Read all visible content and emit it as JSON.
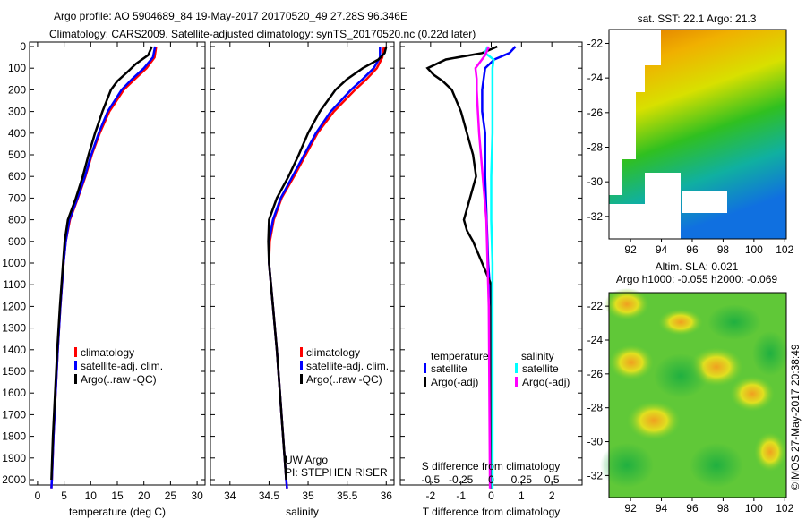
{
  "title_line1": "Argo profile: AO 5904689_84 19-May-2017 20170520_49 27.28S 96.346E",
  "title_line2": "Climatology: CARS2009. Satellite-adjusted climatology: synTS_20170520.nc (0.22d later)",
  "copyright": "©IMOS 27-May-2017 20:38:49",
  "colors": {
    "climatology": "#ff0000",
    "satellite": "#0000ff",
    "argo": "#000000",
    "sal_sat": "#00ffff",
    "sal_argo": "#ff00ff"
  },
  "chart_data": [
    {
      "type": "line",
      "name": "temperature-profile",
      "xlabel": "temperature (deg C)",
      "xlim": [
        -1.5,
        31.5
      ],
      "xticks": [
        0,
        5,
        10,
        15,
        20,
        25,
        30
      ],
      "ylim": [
        0,
        2050
      ],
      "yticks": [
        0,
        100,
        200,
        300,
        400,
        500,
        600,
        700,
        800,
        900,
        1000,
        1100,
        1200,
        1300,
        1400,
        1500,
        1600,
        1700,
        1800,
        1900,
        2000
      ],
      "legend": [
        "climatology",
        "satellite-adj. clim.",
        "Argo(..raw -QC)"
      ],
      "series": [
        {
          "name": "climatology",
          "color": "#ff0000",
          "depth": [
            0,
            50,
            100,
            150,
            200,
            300,
            400,
            500,
            600,
            700,
            800,
            900,
            1000,
            1200,
            1400,
            1600,
            1800,
            2000,
            2040
          ],
          "values": [
            22.3,
            22,
            20.5,
            18.3,
            16.2,
            13.5,
            11.7,
            10.2,
            9,
            7.6,
            6.1,
            5.3,
            4.9,
            4.3,
            3.8,
            3.4,
            3,
            2.7,
            2.6
          ]
        },
        {
          "name": "satellite-adj. clim.",
          "color": "#0000ff",
          "depth": [
            0,
            50,
            100,
            150,
            200,
            300,
            400,
            500,
            600,
            700,
            800,
            900,
            1000,
            1200,
            1400,
            1600,
            1800,
            2000,
            2040
          ],
          "values": [
            22.1,
            21.7,
            20,
            17.8,
            15.8,
            13.2,
            11.5,
            10.1,
            8.9,
            7.5,
            6,
            5.3,
            4.9,
            4.3,
            3.8,
            3.4,
            3,
            2.7,
            2.6
          ]
        },
        {
          "name": "Argo(..raw -QC)",
          "color": "#000000",
          "depth": [
            0,
            40,
            80,
            120,
            160,
            200,
            300,
            400,
            500,
            600,
            700,
            800,
            900,
            1000,
            1200,
            1400,
            1600,
            1800,
            2000
          ],
          "values": [
            21.5,
            20.8,
            18.5,
            16.8,
            15,
            13.8,
            12.2,
            10.8,
            9.6,
            8.5,
            7.2,
            5.7,
            5.1,
            4.8,
            4.2,
            3.7,
            3.3,
            2.9,
            2.6
          ]
        }
      ]
    },
    {
      "type": "line",
      "name": "salinity-profile",
      "xlabel": "salinity",
      "xlim": [
        33.75,
        36.1
      ],
      "xticks": [
        34,
        34.5,
        35,
        35.5,
        36
      ],
      "ylim": [
        0,
        2050
      ],
      "legend": [
        "climatology",
        "satellite-adj. clim.",
        "Argo(..raw -QC)"
      ],
      "annotation": [
        "UW Argo",
        "PI: STEPHEN RISER"
      ],
      "series": [
        {
          "name": "climatology",
          "color": "#ff0000",
          "depth": [
            0,
            50,
            100,
            150,
            200,
            300,
            400,
            500,
            600,
            700,
            800,
            900,
            1000,
            1200,
            1400,
            1600,
            1800,
            2000,
            2040
          ],
          "values": [
            35.97,
            35.95,
            35.88,
            35.75,
            35.6,
            35.33,
            35.12,
            34.97,
            34.82,
            34.66,
            34.56,
            34.51,
            34.5,
            34.55,
            34.6,
            34.64,
            34.68,
            34.72,
            34.73
          ]
        },
        {
          "name": "satellite-adj. clim.",
          "color": "#0000ff",
          "depth": [
            0,
            50,
            100,
            150,
            200,
            300,
            400,
            500,
            600,
            700,
            800,
            900,
            1000,
            1200,
            1400,
            1600,
            1800,
            2000,
            2040
          ],
          "values": [
            35.92,
            35.92,
            35.84,
            35.7,
            35.55,
            35.29,
            35.1,
            34.95,
            34.8,
            34.65,
            34.55,
            34.5,
            34.5,
            34.55,
            34.6,
            34.64,
            34.68,
            34.72,
            34.73
          ]
        },
        {
          "name": "Argo(..raw -QC)",
          "color": "#000000",
          "depth": [
            0,
            30,
            60,
            100,
            150,
            200,
            300,
            400,
            500,
            600,
            700,
            800,
            900,
            1000,
            1200,
            1400,
            1600,
            1800,
            2000
          ],
          "values": [
            36.0,
            35.98,
            35.9,
            35.7,
            35.5,
            35.35,
            35.15,
            35.0,
            34.88,
            34.75,
            34.6,
            34.5,
            34.49,
            34.5,
            34.55,
            34.6,
            34.64,
            34.68,
            34.72
          ]
        }
      ]
    },
    {
      "type": "line",
      "name": "difference-profile",
      "xlabel": "T difference from climatology",
      "xlim": [
        -3,
        3
      ],
      "xticks": [
        -2,
        -1,
        0,
        1,
        2
      ],
      "x2label": "S difference from climatology",
      "x2lim": [
        -0.75,
        0.75
      ],
      "x2ticks": [
        -0.5,
        -0.25,
        0,
        0.25,
        0.5
      ],
      "ylim": [
        0,
        2050
      ],
      "legend_temperature": {
        "title": "temperature",
        "items": [
          "satellite",
          "Argo(-adj)"
        ]
      },
      "legend_salinity": {
        "title": "salinity",
        "items": [
          "satellite",
          "Argo(-adj)"
        ]
      },
      "series": [
        {
          "name": "T satellite",
          "axis": "T",
          "color": "#0000ff",
          "depth": [
            0,
            30,
            60,
            100,
            200,
            300,
            400,
            600,
            800,
            1000,
            1200,
            2040
          ],
          "values": [
            0.8,
            0.6,
            0.1,
            -0.2,
            -0.3,
            -0.3,
            -0.2,
            -0.2,
            -0.15,
            -0.1,
            0,
            0
          ]
        },
        {
          "name": "T Argo(-adj)",
          "axis": "T",
          "color": "#000000",
          "depth": [
            0,
            30,
            60,
            100,
            130,
            160,
            200,
            300,
            400,
            500,
            600,
            700,
            800,
            850,
            900,
            1000,
            1100,
            1200,
            2040
          ],
          "values": [
            0.2,
            -0.3,
            -1.5,
            -2.1,
            -1.9,
            -1.6,
            -1.3,
            -1.0,
            -0.8,
            -0.6,
            -0.5,
            -0.7,
            -0.9,
            -0.8,
            -0.6,
            -0.3,
            0,
            0,
            0
          ]
        },
        {
          "name": "S satellite",
          "axis": "S",
          "color": "#00ffff",
          "depth": [
            0,
            30,
            60,
            100,
            200,
            400,
            600,
            800,
            1000,
            2040
          ],
          "values": [
            -0.03,
            -0.05,
            0.02,
            0.01,
            0.01,
            0.01,
            0.0,
            0.0,
            0.01,
            0.01
          ]
        },
        {
          "name": "S Argo(-adj)",
          "axis": "S",
          "color": "#ff00ff",
          "depth": [
            0,
            40,
            100,
            150,
            200,
            300,
            400,
            600,
            800,
            1000,
            1200,
            2040
          ],
          "values": [
            -0.02,
            -0.05,
            -0.13,
            -0.12,
            -0.12,
            -0.11,
            -0.1,
            -0.07,
            -0.04,
            -0.03,
            -0.02,
            -0.01
          ]
        }
      ]
    },
    {
      "type": "heatmap",
      "name": "sst-map",
      "title": "sat. SST: 22.1 Argo: 21.3",
      "xticks": [
        92,
        94,
        96,
        98,
        100,
        102
      ],
      "yticks": [
        -22,
        -24,
        -26,
        -28,
        -30,
        -32
      ],
      "xlim": [
        90.6,
        102.1
      ],
      "ylim": [
        -33.3,
        -21.2
      ]
    },
    {
      "type": "heatmap",
      "name": "sla-map",
      "title_line1": "Altim. SLA: 0.021",
      "title_line2": "Argo h1000: -0.055 h2000: -0.069",
      "xticks": [
        92,
        94,
        96,
        98,
        100,
        102
      ],
      "yticks": [
        -22,
        -24,
        -26,
        -28,
        -30,
        -32
      ],
      "xlim": [
        90.6,
        102.1
      ],
      "ylim": [
        -33.3,
        -21.2
      ]
    }
  ]
}
